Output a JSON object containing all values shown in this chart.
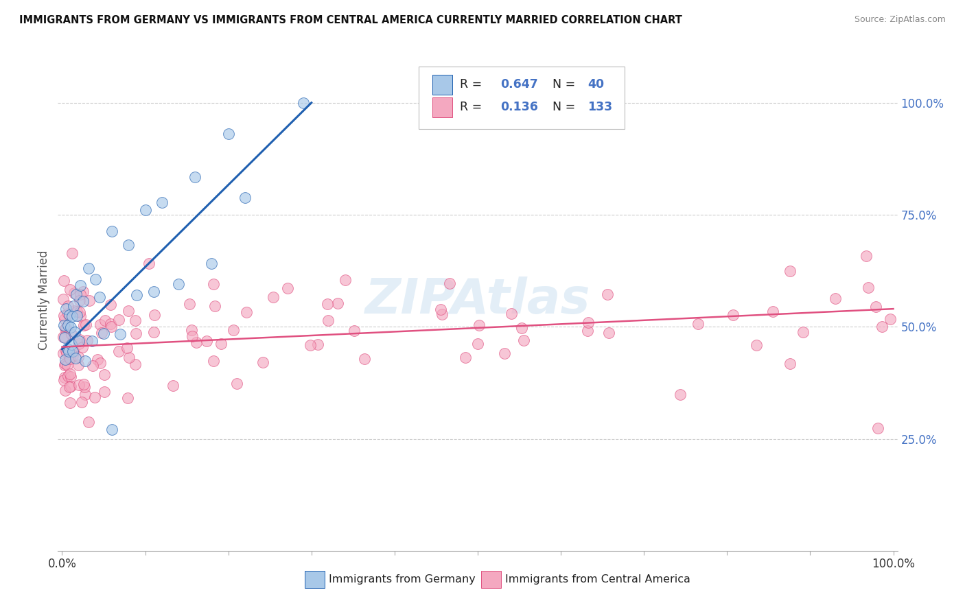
{
  "title": "IMMIGRANTS FROM GERMANY VS IMMIGRANTS FROM CENTRAL AMERICA CURRENTLY MARRIED CORRELATION CHART",
  "source": "Source: ZipAtlas.com",
  "ylabel": "Currently Married",
  "color_germany": "#a8c8e8",
  "color_central_america": "#f4a8c0",
  "line_color_germany": "#2060b0",
  "line_color_central_america": "#e05080",
  "legend_germany": "Immigrants from Germany",
  "legend_central_america": "Immigrants from Central America",
  "R_germany": 0.647,
  "N_germany": 40,
  "R_central_america": 0.136,
  "N_central_america": 133,
  "watermark_color": "#c8dff0",
  "grid_color": "#cccccc",
  "right_tick_color": "#4472c4"
}
